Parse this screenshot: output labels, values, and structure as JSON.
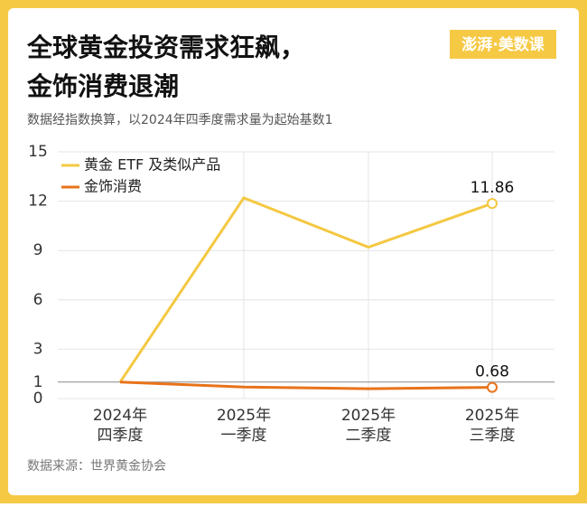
{
  "logo": "澎湃·美数课",
  "chart_data": {
    "type": "line",
    "title": [
      "全球黄金投资需求狂飙，",
      "金饰消费退潮"
    ],
    "subtitle": "数据经指数换算，以2024年四季度需求量为起始基数1",
    "source": "数据来源：世界黄金协会",
    "categories": [
      [
        "2024年",
        "四季度"
      ],
      [
        "2025年",
        "一季度"
      ],
      [
        "2025年",
        "二季度"
      ],
      [
        "2025年",
        "三季度"
      ]
    ],
    "series": [
      {
        "name": "黄金 ETF 及类似产品",
        "color": "#f4c842",
        "values": [
          1,
          12.2,
          9.2,
          11.86
        ]
      },
      {
        "name": "金饰消费",
        "color": "#e8731a",
        "values": [
          1,
          0.7,
          0.6,
          0.68
        ]
      }
    ],
    "ylim": [
      0,
      15
    ],
    "yticks": [
      0,
      1,
      3,
      6,
      9,
      12,
      15
    ],
    "grid": true
  }
}
